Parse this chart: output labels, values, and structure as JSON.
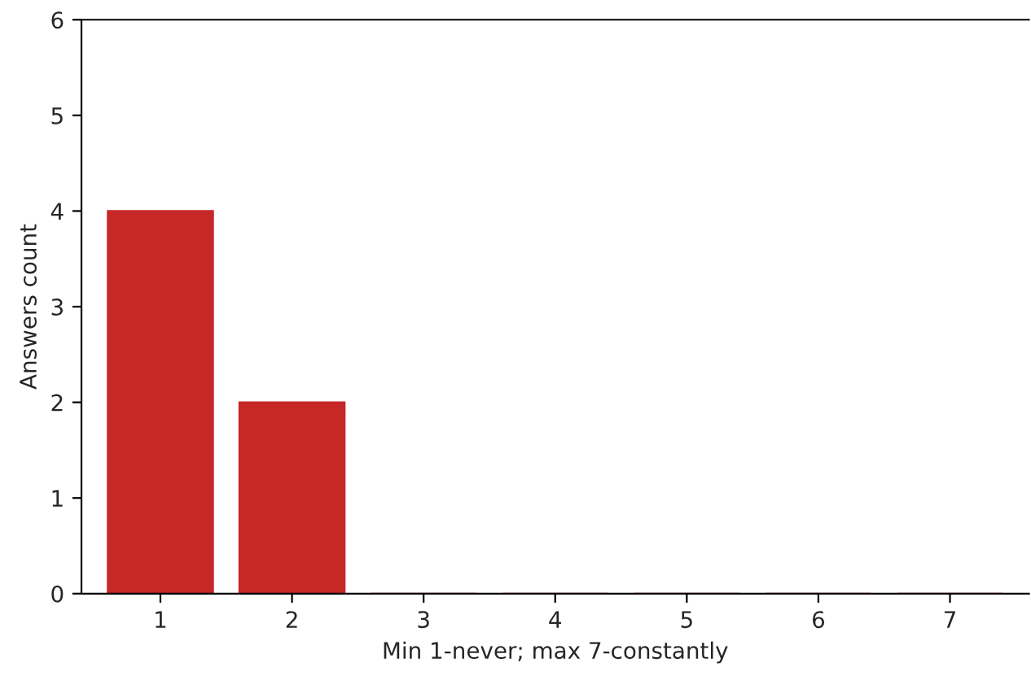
{
  "chart_data": {
    "type": "bar",
    "xlabel": "Min 1-never; max 7-constantly",
    "ylabel": "Answers count",
    "categories": [
      "1",
      "2",
      "3",
      "4",
      "5",
      "6",
      "7"
    ],
    "values": [
      4,
      2,
      0,
      0,
      0,
      0,
      0
    ],
    "color": "#c62828",
    "ylim": [
      0,
      6
    ],
    "yticks": [
      0,
      1,
      2,
      3,
      4,
      5,
      6
    ],
    "grid": false
  }
}
